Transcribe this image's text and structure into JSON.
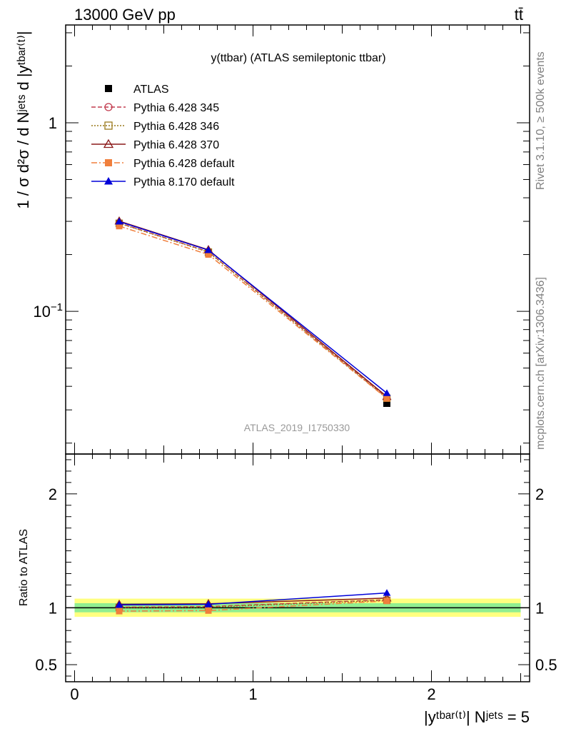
{
  "header": {
    "left": "13000 GeV pp",
    "right": "tt̄"
  },
  "side": {
    "rivet": "Rivet 3.1.10, ≥ 500k events",
    "mcplots": "mcplots.cern.ch [arXiv:1306.3436]"
  },
  "chart_data": [
    {
      "type": "line",
      "title": "y(ttbar) (ATLAS semileptonic ttbar)",
      "watermark": "ATLAS_2019_I1750330",
      "ylabel": "1 / σ d²σ / d Nʲᵉᵗˢ d |yᵗᵇᵃʳ⁽ᵗ⁾|",
      "yscale": "log",
      "xlim": [
        -0.05,
        2.55
      ],
      "ylim": [
        0.0175,
        3.3
      ],
      "yticks": [
        {
          "v": 0.1,
          "label": "10",
          "sup": "−1"
        },
        {
          "v": 1,
          "label": "1",
          "sup": ""
        }
      ],
      "legend_position": "top-left",
      "x": [
        0.25,
        0.75,
        1.75
      ],
      "series": [
        {
          "name": "ATLAS",
          "color": "#000000",
          "marker": "square-filled",
          "dash": "",
          "values": [
            0.292,
            0.205,
            0.0325
          ]
        },
        {
          "name": "Pythia 6.428 345",
          "color": "#c23b4e",
          "marker": "circle-open",
          "dash": "6,3",
          "values": [
            0.294,
            0.207,
            0.0348
          ]
        },
        {
          "name": "Pythia 6.428 346",
          "color": "#9a7a1c",
          "marker": "square-open",
          "dash": "2,2",
          "values": [
            0.293,
            0.206,
            0.0346
          ]
        },
        {
          "name": "Pythia 6.428 370",
          "color": "#8b1a1a",
          "marker": "triangle-open",
          "dash": "",
          "values": [
            0.301,
            0.212,
            0.0353
          ]
        },
        {
          "name": "Pythia 6.428 default",
          "color": "#f07f3c",
          "marker": "square-filled",
          "dash": "8,3,2,3",
          "values": [
            0.283,
            0.2,
            0.0345
          ]
        },
        {
          "name": "Pythia 8.170 default",
          "color": "#0000d8",
          "marker": "triangle-filled",
          "dash": "",
          "values": [
            0.299,
            0.211,
            0.0368
          ]
        }
      ]
    },
    {
      "type": "line",
      "ylabel": "Ratio to ATLAS",
      "xlabel": "|yᵗᵇᵃʳ⁽ᵗ⁾| Nʲᵉᵗˢ = 5",
      "ylim": [
        0.35,
        2.35
      ],
      "yticks": [
        {
          "v": 0.5,
          "label": "0.5"
        },
        {
          "v": 1,
          "label": "1"
        },
        {
          "v": 2,
          "label": "2"
        }
      ],
      "xticks": [
        {
          "v": 0,
          "label": "0"
        },
        {
          "v": 1,
          "label": "1"
        },
        {
          "v": 2,
          "label": "2"
        }
      ],
      "band_inner": [
        0.96,
        1.04
      ],
      "band_outer": [
        0.92,
        1.08
      ],
      "x": [
        0.25,
        0.75,
        1.75
      ],
      "series": [
        {
          "name": "Pythia 6.428 345",
          "values": [
            1.005,
            1.01,
            1.07
          ]
        },
        {
          "name": "Pythia 6.428 346",
          "values": [
            1.003,
            1.005,
            1.065
          ]
        },
        {
          "name": "Pythia 6.428 370",
          "values": [
            1.03,
            1.035,
            1.085
          ]
        },
        {
          "name": "Pythia 6.428 default",
          "values": [
            0.97,
            0.975,
            1.06
          ]
        },
        {
          "name": "Pythia 8.170 default",
          "values": [
            1.025,
            1.03,
            1.13
          ]
        }
      ]
    }
  ]
}
